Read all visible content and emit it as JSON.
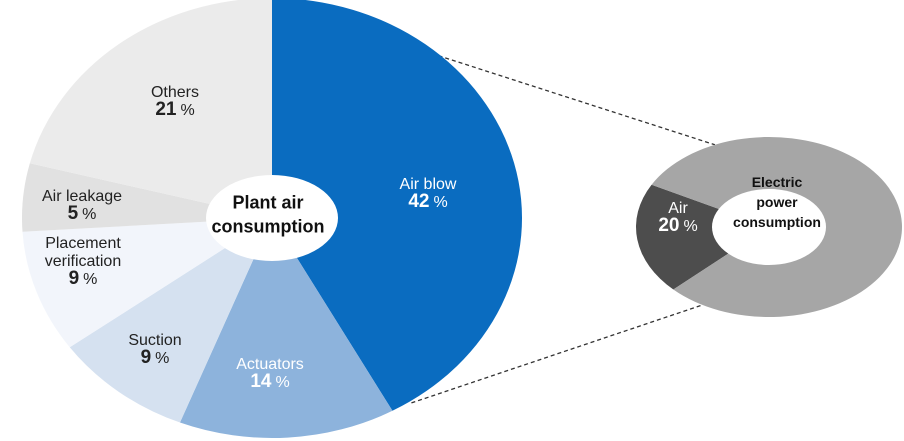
{
  "chart_data": [
    {
      "type": "pie",
      "title": "Plant air consumption",
      "title_lines": [
        "Plant air",
        "consumption"
      ],
      "unit": "%",
      "slices": [
        {
          "key": "air_blow",
          "label": "Air blow",
          "label_lines": [
            "Air blow"
          ],
          "value": 42,
          "color": "#0a6cc0",
          "label_color": "#ffffff"
        },
        {
          "key": "actuators",
          "label": "Actuators",
          "label_lines": [
            "Actuators"
          ],
          "value": 14,
          "color": "#8db3dc",
          "label_color": "#ffffff"
        },
        {
          "key": "suction",
          "label": "Suction",
          "label_lines": [
            "Suction"
          ],
          "value": 9,
          "color": "#d5e1f0",
          "label_color": "#222222"
        },
        {
          "key": "placement_verification",
          "label": "Placement verification",
          "label_lines": [
            "Placement",
            "verification"
          ],
          "value": 9,
          "color": "#f2f5fb",
          "label_color": "#222222"
        },
        {
          "key": "air_leakage",
          "label": "Air leakage",
          "label_lines": [
            "Air leakage"
          ],
          "value": 5,
          "color": "#e1e1e1",
          "label_color": "#222222"
        },
        {
          "key": "others",
          "label": "Others",
          "label_lines": [
            "Others"
          ],
          "value": 21,
          "color": "#ebebeb",
          "label_color": "#222222"
        }
      ]
    },
    {
      "type": "pie",
      "title": "Electric power consumption",
      "title_lines": [
        "Electric",
        "power",
        "consumption"
      ],
      "unit": "%",
      "slices": [
        {
          "key": "air",
          "label": "Air",
          "label_lines": [
            "Air"
          ],
          "value": 20,
          "color": "#4d4d4d",
          "label_color": "#ffffff"
        },
        {
          "key": "other",
          "label": "",
          "label_lines": [],
          "value": 80,
          "color": "#a6a6a6",
          "label_color": "#222222"
        }
      ]
    }
  ]
}
